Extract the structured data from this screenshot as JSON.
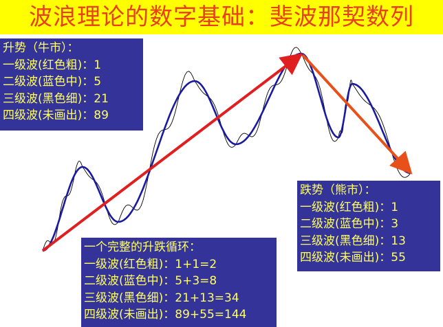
{
  "title": "波浪理论的数字基础：斐波那契数列",
  "bull_box": {
    "heading": "升势（牛市）：",
    "lines": [
      "一级波(红色粗)：1",
      "二级波(蓝色中)：5",
      "三级波(黑色细)：21",
      "四级波(未画出)：89"
    ]
  },
  "cycle_box": {
    "heading": "一个完整的升跌循环：",
    "lines": [
      "一级波(红色粗)：1+1=2",
      "二级波(蓝色中)：5+3=8",
      "三级波(黑色细)：21+13=34",
      "四级波(未画出)：89+55=144"
    ]
  },
  "bear_box": {
    "heading": "跌势（熊市）：",
    "lines": [
      "一级波(红色粗)：1",
      "二级波(蓝色中)：3",
      "三级波(黑色细)：13",
      "四级波(未画出)：55"
    ]
  },
  "colors": {
    "title_bg": "#ffff00",
    "title_text": "#e8401a",
    "box_bg": "#333399",
    "box_text": "#ffff66",
    "wave1": "#e02020",
    "wave2": "#1a1aa0",
    "wave3": "#000000"
  }
}
